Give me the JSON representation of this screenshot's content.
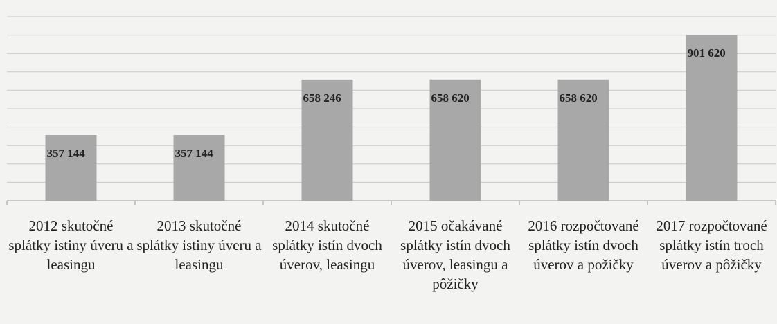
{
  "chart_data": {
    "type": "bar",
    "categories": [
      "2012 skutočné splátky istiny úveru  a leasingu",
      "2013 skutočné splátky istiny úveru a leasingu",
      "2014 skutočné splátky istín dvoch úverov, leasingu",
      "2015 očakávané splátky istín dvoch úverov, leasingu a pôžičky",
      "2016 rozpočtované splátky istín dvoch úverov a požičky",
      "2017 rozpočtované splátky istín troch úverov a pôžičky"
    ],
    "values": [
      357144,
      357144,
      658246,
      658620,
      658620,
      901620
    ],
    "value_labels": [
      "357 144",
      "357 144",
      "658 246",
      "658 620",
      "658 620",
      "901 620"
    ],
    "color": "#a8a8a8",
    "ylim": [
      0,
      1000000
    ],
    "yticks": [
      0,
      100000,
      200000,
      300000,
      400000,
      500000,
      600000,
      700000,
      800000,
      900000,
      1000000
    ],
    "grid": true
  }
}
